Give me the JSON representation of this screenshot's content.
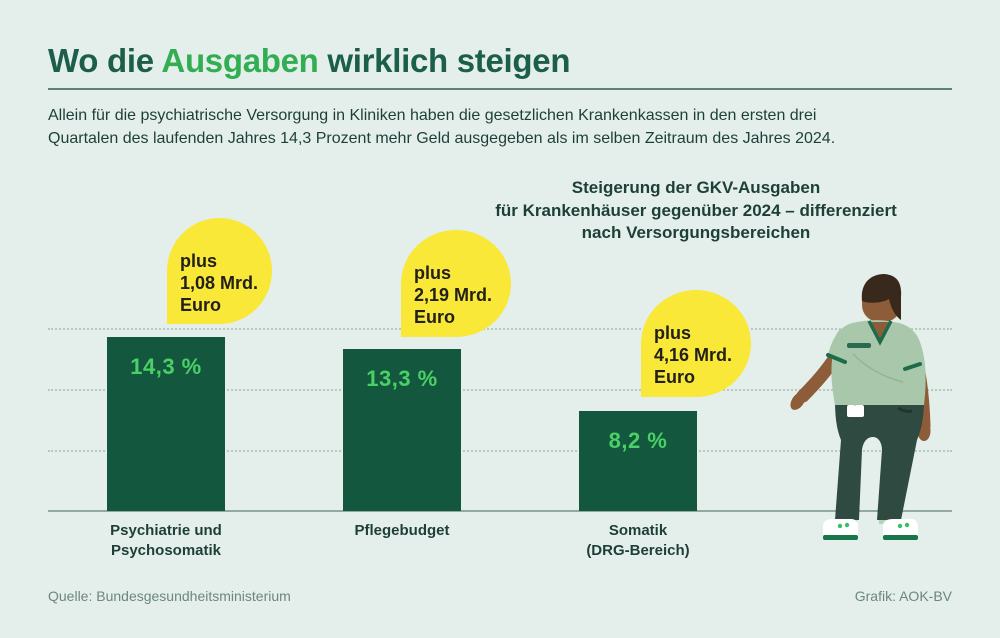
{
  "colors": {
    "page_bg": "#e4efec",
    "title_green": "#1b5e4a",
    "accent_green": "#31ad52",
    "text_dark": "#1d3f37",
    "divider": "#5d827a",
    "grid": "#b7c7c2",
    "axis": "#93a9a3",
    "bar_green": "#14573f",
    "value_green": "#49d165",
    "bubble_yellow": "#f9e838",
    "bubble_text": "#21201a",
    "muted": "#6d8680"
  },
  "header": {
    "title_prefix": "Wo die ",
    "title_highlight": "Ausgaben",
    "title_suffix": " wirklich steigen",
    "intro_line1": "Allein für die psychiatrische Versorgung in Kliniken haben die gesetzlichen Krankenkassen in den ersten drei",
    "intro_line2": "Quartalen des laufenden Jahres 14,3 Prozent mehr Geld ausgegeben als im selben Zeitraum des Jahres 2024."
  },
  "chart_data": {
    "type": "bar",
    "title": "Steigerung der GKV-Ausgaben für Krankenhäuser gegenüber 2024 – differenziert nach Versorgungsbereichen",
    "title_lines": [
      "Steigerung der GKV-Ausgaben",
      "für Krankenhäuser gegenüber 2024 – differenziert",
      "nach Versorgungsbereichen"
    ],
    "categories": [
      "Psychiatrie und Psychosomatik",
      "Pflegebudget",
      "Somatik (DRG-Bereich)"
    ],
    "values": [
      14.3,
      13.3,
      8.2
    ],
    "value_labels": [
      "14,3 %",
      "13,3 %",
      "8,2 %"
    ],
    "annotations_mrd_euro": [
      1.08,
      2.19,
      4.16
    ],
    "ylim": [
      0,
      17
    ],
    "grid": "3 dotted horizontal gridlines, solid baseline",
    "legend": "none",
    "bars": [
      {
        "category": "Psychiatrie und Psychosomatik",
        "category_lines": [
          "Psychiatrie und",
          "Psychosomatik"
        ],
        "value": 14.3,
        "value_label": "14,3 %",
        "annotation": "plus 1,08 Mrd. Euro",
        "annotation_lines": [
          "plus",
          "1,08 Mrd.",
          "Euro"
        ]
      },
      {
        "category": "Pflegebudget",
        "category_lines": [
          "Pflegebudget"
        ],
        "value": 13.3,
        "value_label": "13,3 %",
        "annotation": "plus 2,19 Mrd. Euro",
        "annotation_lines": [
          "plus",
          "2,19 Mrd.",
          "Euro"
        ]
      },
      {
        "category": "Somatik (DRG-Bereich)",
        "category_lines": [
          "Somatik",
          "(DRG-Bereich)"
        ],
        "value": 8.2,
        "value_label": "8,2 %",
        "annotation": "plus 4,16 Mrd. Euro",
        "annotation_lines": [
          "plus",
          "4,16 Mrd.",
          "Euro"
        ]
      }
    ]
  },
  "figure": {
    "illustration": "healthcare-worker-in-scrubs"
  },
  "footer": {
    "source": "Quelle: Bundesgesundheitsministerium",
    "credit": "Grafik: AOK-BV"
  }
}
